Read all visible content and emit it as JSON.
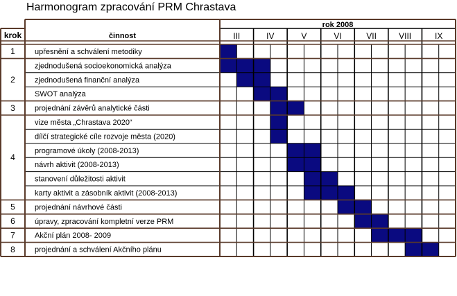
{
  "title": "Harmonogram zpracování PRM Chrastava",
  "header": {
    "krok": "krok",
    "cinnost": "činnost",
    "year": "rok 2008"
  },
  "months": [
    "III",
    "IV",
    "V",
    "VI",
    "VII",
    "VIII",
    "IX"
  ],
  "steps": [
    {
      "label": "1",
      "rows": 1
    },
    {
      "label": "2",
      "rows": 3
    },
    {
      "label": "3",
      "rows": 1
    },
    {
      "label": "4",
      "rows": 6
    },
    {
      "label": "5",
      "rows": 1
    },
    {
      "label": "6",
      "rows": 1
    },
    {
      "label": "7",
      "rows": 1
    },
    {
      "label": "8",
      "rows": 1
    }
  ],
  "tasks": [
    {
      "label": "upřesnění a schválení metodiky",
      "filled": [
        0
      ]
    },
    {
      "label": "zjednodušená socioekonomická analýza",
      "filled": [
        0,
        1,
        2
      ]
    },
    {
      "label": "zjednodušená finanční analýza",
      "filled": [
        1,
        2
      ]
    },
    {
      "label": "SWOT analýza",
      "filled": [
        2,
        3
      ]
    },
    {
      "label": "projednání závěrů analytické části",
      "filled": [
        3,
        4
      ]
    },
    {
      "label": "vize města „Chrastava 2020“",
      "filled": [
        3
      ]
    },
    {
      "label": "dílčí strategické cíle rozvoje města (2020)",
      "filled": [
        3
      ]
    },
    {
      "label": "programové úkoly (2008-2013)",
      "filled": [
        4,
        5
      ]
    },
    {
      "label": "návrh aktivit (2008-2013)",
      "filled": [
        4,
        5
      ]
    },
    {
      "label": "stanovení důležitosti aktivit",
      "filled": [
        5,
        6
      ]
    },
    {
      "label": "karty aktivit a zásobník aktivit (2008-2013)",
      "filled": [
        5,
        6,
        7
      ]
    },
    {
      "label": "projednání návrhové části",
      "filled": [
        7,
        8
      ]
    },
    {
      "label": "úpravy, zpracování kompletní verze PRM",
      "filled": [
        8,
        9
      ]
    },
    {
      "label": "Akční plán 2008- 2009",
      "filled": [
        9,
        10,
        11
      ]
    },
    {
      "label": "projednání a schválení Akčního plánu",
      "filled": [
        11,
        12
      ]
    }
  ],
  "colors": {
    "border": "#5a3a2a",
    "fill": "#0a0a80",
    "grid": "#000000"
  }
}
